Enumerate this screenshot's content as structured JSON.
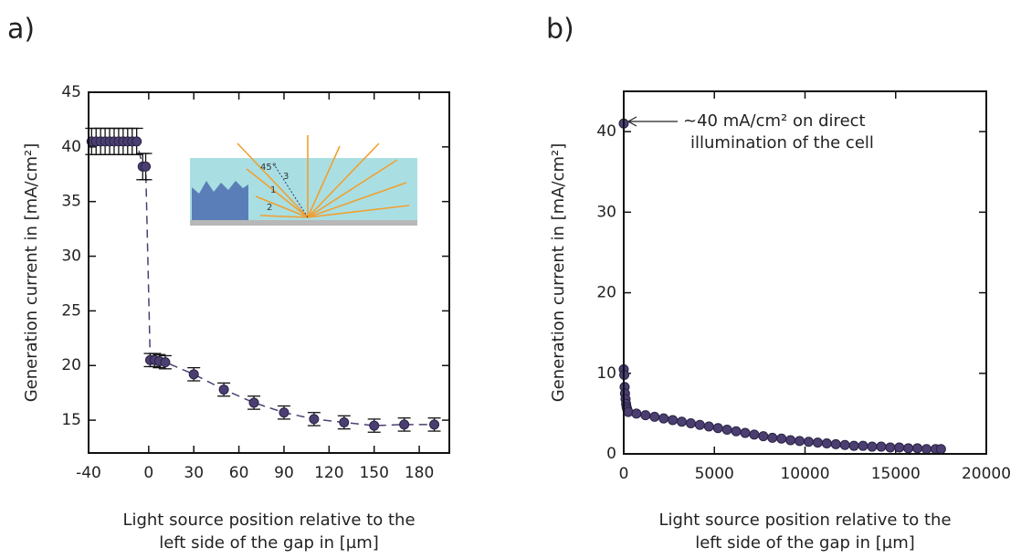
{
  "chart_data": [
    {
      "type": "scatter",
      "panel_label": "a)",
      "ylabel": "Generation current in [mA/cm²]",
      "xlabel": [
        "Light source position relative to the",
        "left side of the gap in [µm]"
      ],
      "xlim": [
        -40,
        200
      ],
      "xticks": [
        -40,
        0,
        30,
        60,
        90,
        120,
        150,
        180
      ],
      "ylim": [
        12,
        45
      ],
      "yticks": [
        15,
        20,
        25,
        30,
        35,
        40,
        45
      ],
      "inset_labels": [
        "45°",
        "1",
        "2",
        "3"
      ],
      "series": [
        {
          "color": "#4b3f72",
          "line": "dashed",
          "x": [
            -38,
            -35,
            -32,
            -29,
            -26,
            -23,
            -20,
            -17,
            -14,
            -11,
            -8,
            -4,
            -2,
            1,
            4,
            7,
            11,
            30,
            50,
            70,
            90,
            110,
            130,
            150,
            170,
            190
          ],
          "values": [
            40.5,
            40.5,
            40.5,
            40.5,
            40.5,
            40.5,
            40.5,
            40.5,
            40.5,
            40.5,
            40.5,
            38.2,
            38.2,
            20.5,
            20.5,
            20.4,
            20.3,
            19.2,
            17.8,
            16.6,
            15.7,
            15.1,
            14.8,
            14.5,
            14.6,
            14.6
          ],
          "errors": [
            1.2,
            1.2,
            1.2,
            1.2,
            1.2,
            1.2,
            1.2,
            1.2,
            1.2,
            1.2,
            1.2,
            1.2,
            1.2,
            0.6,
            0.6,
            0.6,
            0.6,
            0.6,
            0.6,
            0.6,
            0.6,
            0.6,
            0.6,
            0.6,
            0.6,
            0.6
          ]
        }
      ]
    },
    {
      "type": "scatter",
      "panel_label": "b)",
      "ylabel": "Generation current in [mA/cm²]",
      "xlabel": [
        "Light source position relative to the",
        "left side of the gap in [µm]"
      ],
      "xlim": [
        0,
        20000
      ],
      "xticks": [
        0,
        5000,
        10000,
        15000,
        20000
      ],
      "ylim": [
        0,
        45
      ],
      "yticks": [
        0,
        10,
        20,
        30,
        40
      ],
      "annotation": [
        "~40 mA/cm² on direct",
        "illumination of the cell"
      ],
      "series": [
        {
          "color": "#4b3f72",
          "x": [
            0,
            0,
            30,
            50,
            70,
            100,
            130,
            160,
            200,
            250,
            700,
            1200,
            1700,
            2200,
            2700,
            3200,
            3700,
            4200,
            4700,
            5200,
            5700,
            6200,
            6700,
            7200,
            7700,
            8200,
            8700,
            9200,
            9700,
            10200,
            10700,
            11200,
            11700,
            12200,
            12700,
            13200,
            13700,
            14200,
            14700,
            15200,
            15700,
            16200,
            16700,
            17200,
            17500
          ],
          "values": [
            41,
            10.5,
            9.8,
            8.3,
            7.5,
            6.8,
            6.2,
            5.8,
            5.5,
            5.2,
            5.0,
            4.8,
            4.6,
            4.4,
            4.2,
            4.0,
            3.8,
            3.6,
            3.4,
            3.2,
            3.0,
            2.8,
            2.6,
            2.4,
            2.2,
            2.0,
            1.9,
            1.7,
            1.6,
            1.5,
            1.4,
            1.3,
            1.2,
            1.1,
            1.0,
            1.0,
            0.9,
            0.9,
            0.8,
            0.8,
            0.7,
            0.7,
            0.6,
            0.6,
            0.6
          ]
        }
      ]
    }
  ]
}
